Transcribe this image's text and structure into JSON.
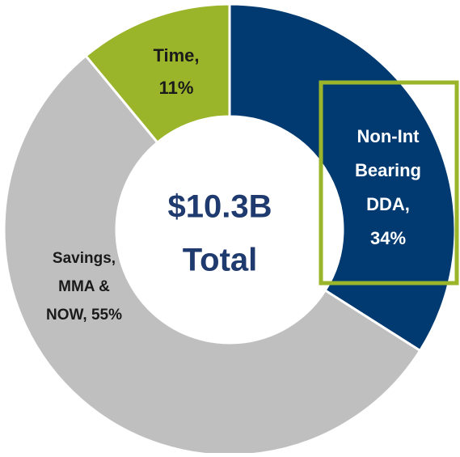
{
  "chart_data": {
    "type": "donut",
    "values": [
      34,
      55,
      11
    ],
    "labels": [
      [
        "Non-Int",
        "Bearing",
        "DDA,",
        "34%"
      ],
      [
        "Savings,",
        "MMA &",
        "NOW, 55%"
      ],
      [
        "Time,",
        "11%"
      ]
    ],
    "colors": [
      "#003a70",
      "#bfbfbf",
      "#9bb52a"
    ],
    "center_label": [
      "$10.3B",
      "Total"
    ]
  }
}
